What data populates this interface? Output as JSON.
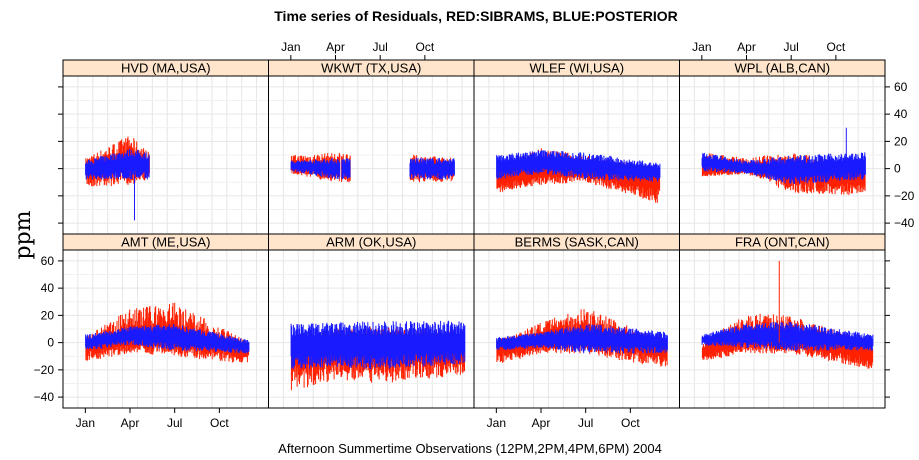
{
  "chart_data": {
    "type": "line",
    "title": "Time series of Residuals, RED:SIBRAMS, BLUE:POSTERIOR",
    "xlabel": "Afternoon Summertime Observations (12PM,2PM,4PM,6PM) 2004",
    "ylabel": "ppm",
    "ylim": [
      -48,
      68
    ],
    "y_ticks": [
      -40,
      -20,
      0,
      20,
      40,
      60
    ],
    "x_ticks": [
      "Jan",
      "Apr",
      "Jul",
      "Oct"
    ],
    "x_tick_months": [
      0.5,
      3.5,
      6.5,
      9.5
    ],
    "xlim_months": [
      -1.0,
      12.8
    ],
    "grid": true,
    "colors": {
      "sibrams": "#ff2000",
      "posterior": "#1a1aff",
      "strip": "#ffe5cc",
      "grid": "#e6e6e6"
    },
    "series_names": [
      "SIBRAMS",
      "POSTERIOR"
    ],
    "panels": [
      {
        "label": "HVD (MA,USA)",
        "segments": [
          [
            0.5,
            4.8
          ]
        ],
        "lo": [
          [
            0.5,
            -8
          ],
          [
            3.5,
            -8
          ],
          [
            6.5,
            -8
          ],
          [
            4.8,
            -8
          ]
        ],
        "hi": [
          [
            0.5,
            6
          ],
          [
            3.5,
            15
          ],
          [
            6.5,
            15
          ],
          [
            4.8,
            12
          ]
        ],
        "red_lo": [
          [
            0.5,
            -14
          ],
          [
            3.5,
            -12
          ],
          [
            6.5,
            -10
          ],
          [
            4.8,
            -8
          ]
        ],
        "red_hi": [
          [
            0.5,
            8
          ],
          [
            3.5,
            25
          ],
          [
            6.5,
            25
          ],
          [
            4.8,
            12
          ]
        ],
        "red_offset": [
          [
            0.5,
            0
          ],
          [
            3.5,
            5
          ],
          [
            6.5,
            0
          ],
          [
            4.8,
            0
          ]
        ],
        "blue_spike": -38,
        "spike_at": 3.8
      },
      {
        "label": "WKWT (TX,USA)",
        "segments": [
          [
            0.5,
            3.8
          ],
          [
            3.9,
            4.5
          ],
          [
            8.5,
            11.5
          ]
        ],
        "lo": [
          [
            0.5,
            -2
          ],
          [
            3.5,
            -8
          ],
          [
            6.5,
            -8
          ],
          [
            11.5,
            -8
          ]
        ],
        "hi": [
          [
            0.5,
            6
          ],
          [
            3.5,
            8
          ],
          [
            6.5,
            8
          ],
          [
            11.5,
            8
          ]
        ],
        "red_lo": [
          [
            0.5,
            -4
          ],
          [
            3.5,
            -10
          ],
          [
            6.5,
            -10
          ],
          [
            11.5,
            -10
          ]
        ],
        "red_hi": [
          [
            0.5,
            10
          ],
          [
            3.5,
            12
          ],
          [
            6.5,
            12
          ],
          [
            11.5,
            8
          ]
        ],
        "red_offset": [
          [
            0.5,
            2
          ],
          [
            3.5,
            0
          ],
          [
            6.5,
            0
          ],
          [
            11.5,
            0
          ]
        ],
        "blue_spike": null,
        "spike_at": 0
      },
      {
        "label": "WLEF (WI,USA)",
        "segments": [
          [
            0.5,
            11.5
          ]
        ],
        "lo": [
          [
            0.5,
            -8
          ],
          [
            3.5,
            -4
          ],
          [
            6.5,
            -8
          ],
          [
            11.5,
            -10
          ]
        ],
        "hi": [
          [
            0.5,
            10
          ],
          [
            3.5,
            14
          ],
          [
            6.5,
            12
          ],
          [
            11.5,
            4
          ]
        ],
        "red_lo": [
          [
            0.5,
            -18
          ],
          [
            3.5,
            -12
          ],
          [
            6.5,
            -10
          ],
          [
            11.5,
            -26
          ]
        ],
        "red_hi": [
          [
            0.5,
            2
          ],
          [
            3.5,
            15
          ],
          [
            6.5,
            10
          ],
          [
            11.5,
            0
          ]
        ],
        "red_offset": [
          [
            0.5,
            -8
          ],
          [
            3.5,
            -3
          ],
          [
            6.5,
            -3
          ],
          [
            11.5,
            -10
          ]
        ],
        "blue_spike": null,
        "spike_at": 0
      },
      {
        "label": "WPL (ALB,CAN)",
        "segments": [
          [
            0.5,
            11.5
          ]
        ],
        "lo": [
          [
            0.5,
            -2
          ],
          [
            3.5,
            -4
          ],
          [
            6.5,
            -12
          ],
          [
            11.5,
            -8
          ]
        ],
        "hi": [
          [
            0.5,
            12
          ],
          [
            3.5,
            6
          ],
          [
            6.5,
            10
          ],
          [
            11.5,
            12
          ]
        ],
        "red_lo": [
          [
            0.5,
            -6
          ],
          [
            3.5,
            -4
          ],
          [
            6.5,
            -18
          ],
          [
            11.5,
            -20
          ]
        ],
        "red_hi": [
          [
            0.5,
            12
          ],
          [
            3.5,
            8
          ],
          [
            6.5,
            12
          ],
          [
            11.5,
            4
          ]
        ],
        "red_offset": [
          [
            0.5,
            -2
          ],
          [
            3.5,
            0
          ],
          [
            6.5,
            -3
          ],
          [
            11.5,
            -8
          ]
        ],
        "blue_spike": 30,
        "spike_at": 10.2
      },
      {
        "label": "AMT (ME,USA)",
        "segments": [
          [
            0.5,
            11.5
          ]
        ],
        "lo": [
          [
            0.5,
            -6
          ],
          [
            3.5,
            -2
          ],
          [
            6.5,
            -6
          ],
          [
            11.5,
            -8
          ]
        ],
        "hi": [
          [
            0.5,
            6
          ],
          [
            3.5,
            12
          ],
          [
            6.5,
            14
          ],
          [
            11.5,
            2
          ]
        ],
        "red_lo": [
          [
            0.5,
            -14
          ],
          [
            3.5,
            -8
          ],
          [
            6.5,
            -10
          ],
          [
            11.5,
            -16
          ]
        ],
        "red_hi": [
          [
            0.5,
            4
          ],
          [
            3.5,
            25
          ],
          [
            6.5,
            30
          ],
          [
            11.5,
            0
          ]
        ],
        "red_offset": [
          [
            0.5,
            -4
          ],
          [
            3.5,
            2
          ],
          [
            6.5,
            2
          ],
          [
            11.5,
            -6
          ]
        ],
        "blue_spike": null,
        "spike_at": 0
      },
      {
        "label": "ARM (OK,USA)",
        "segments": [
          [
            0.5,
            12.2
          ]
        ],
        "lo": [
          [
            0.5,
            -20
          ],
          [
            3.5,
            -18
          ],
          [
            6.5,
            -20
          ],
          [
            12.2,
            -16
          ]
        ],
        "hi": [
          [
            0.5,
            14
          ],
          [
            3.5,
            15
          ],
          [
            6.5,
            16
          ],
          [
            12.2,
            16
          ]
        ],
        "red_lo": [
          [
            0.5,
            -36
          ],
          [
            3.5,
            -28
          ],
          [
            6.5,
            -30
          ],
          [
            12.2,
            -24
          ]
        ],
        "red_hi": [
          [
            0.5,
            6
          ],
          [
            3.5,
            10
          ],
          [
            6.5,
            12
          ],
          [
            12.2,
            10
          ]
        ],
        "red_offset": [
          [
            0.5,
            -8
          ],
          [
            3.5,
            -6
          ],
          [
            6.5,
            -6
          ],
          [
            12.2,
            -6
          ]
        ],
        "blue_spike": null,
        "spike_at": 0
      },
      {
        "label": "BERMS (SASK,CAN)",
        "segments": [
          [
            0.5,
            12.0
          ]
        ],
        "lo": [
          [
            0.5,
            -6
          ],
          [
            3.5,
            -4
          ],
          [
            6.5,
            -8
          ],
          [
            12.0,
            -8
          ]
        ],
        "hi": [
          [
            0.5,
            4
          ],
          [
            3.5,
            8
          ],
          [
            6.5,
            14
          ],
          [
            12.0,
            8
          ]
        ],
        "red_lo": [
          [
            0.5,
            -16
          ],
          [
            3.5,
            -8
          ],
          [
            6.5,
            -8
          ],
          [
            12.0,
            -20
          ]
        ],
        "red_hi": [
          [
            0.5,
            2
          ],
          [
            3.5,
            15
          ],
          [
            6.5,
            26
          ],
          [
            12.0,
            0
          ]
        ],
        "red_offset": [
          [
            0.5,
            -5
          ],
          [
            3.5,
            0
          ],
          [
            6.5,
            4
          ],
          [
            12.0,
            -6
          ]
        ],
        "blue_spike": null,
        "spike_at": 0
      },
      {
        "label": "FRA (ONT,CAN)",
        "segments": [
          [
            0.5,
            12.0
          ]
        ],
        "lo": [
          [
            0.5,
            -2
          ],
          [
            3.5,
            -4
          ],
          [
            6.5,
            -6
          ],
          [
            12.0,
            -6
          ]
        ],
        "hi": [
          [
            0.5,
            6
          ],
          [
            3.5,
            14
          ],
          [
            6.5,
            16
          ],
          [
            12.0,
            6
          ]
        ],
        "red_lo": [
          [
            0.5,
            -14
          ],
          [
            3.5,
            -8
          ],
          [
            6.5,
            -8
          ],
          [
            12.0,
            -20
          ]
        ],
        "red_hi": [
          [
            0.5,
            0
          ],
          [
            3.5,
            22
          ],
          [
            6.5,
            20
          ],
          [
            12.0,
            0
          ]
        ],
        "red_offset": [
          [
            0.5,
            -8
          ],
          [
            3.5,
            2
          ],
          [
            6.5,
            0
          ],
          [
            12.0,
            -8
          ]
        ],
        "blue_spike": null,
        "spike_at": 0,
        "red_spike": 60,
        "red_spike_at": 5.7
      }
    ]
  }
}
